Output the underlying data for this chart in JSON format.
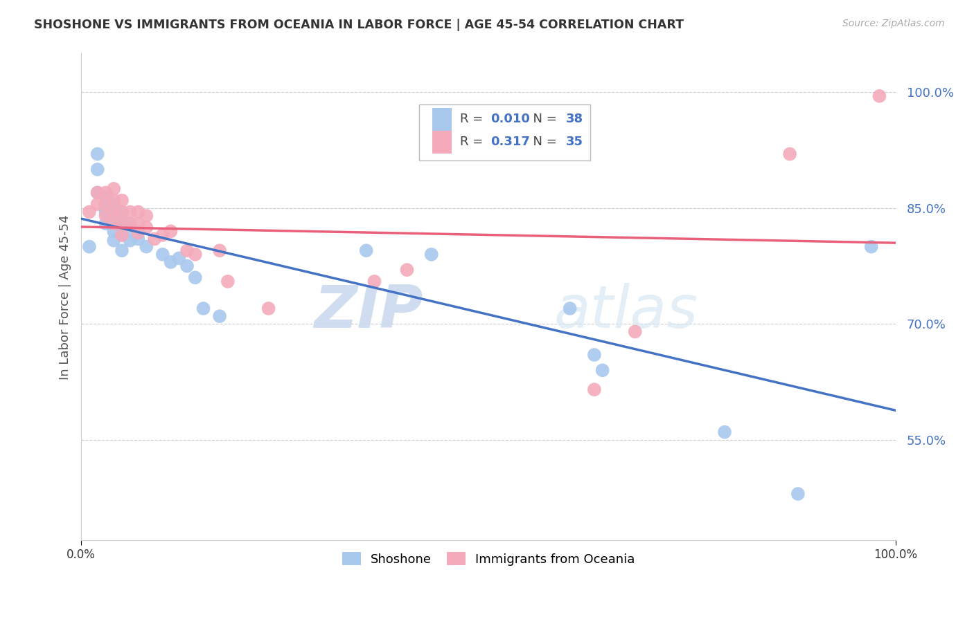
{
  "title": "SHOSHONE VS IMMIGRANTS FROM OCEANIA IN LABOR FORCE | AGE 45-54 CORRELATION CHART",
  "source": "Source: ZipAtlas.com",
  "ylabel": "In Labor Force | Age 45-54",
  "xlim": [
    0.0,
    1.0
  ],
  "ylim": [
    0.42,
    1.05
  ],
  "yticks": [
    0.55,
    0.7,
    0.85,
    1.0
  ],
  "ytick_labels": [
    "55.0%",
    "70.0%",
    "85.0%",
    "100.0%"
  ],
  "xtick_labels": [
    "0.0%",
    "100.0%"
  ],
  "legend_label1": "Shoshone",
  "legend_label2": "Immigrants from Oceania",
  "R1": "0.010",
  "N1": "38",
  "R2": "0.317",
  "N2": "35",
  "color_blue": "#A8C8EE",
  "color_pink": "#F4AABB",
  "line_blue": "#4472C4",
  "line_pink": "#E8607A",
  "watermark_zip": "ZIP",
  "watermark_atlas": "atlas",
  "blue_x": [
    0.01,
    0.02,
    0.02,
    0.02,
    0.03,
    0.03,
    0.03,
    0.03,
    0.04,
    0.04,
    0.04,
    0.04,
    0.04,
    0.05,
    0.05,
    0.05,
    0.05,
    0.05,
    0.06,
    0.06,
    0.06,
    0.07,
    0.08,
    0.1,
    0.11,
    0.12,
    0.13,
    0.14,
    0.15,
    0.17,
    0.35,
    0.43,
    0.6,
    0.63,
    0.64,
    0.79,
    0.88,
    0.97
  ],
  "blue_y": [
    0.8,
    0.92,
    0.9,
    0.87,
    0.865,
    0.855,
    0.845,
    0.83,
    0.855,
    0.845,
    0.835,
    0.82,
    0.808,
    0.845,
    0.835,
    0.825,
    0.815,
    0.795,
    0.83,
    0.82,
    0.808,
    0.81,
    0.8,
    0.79,
    0.78,
    0.785,
    0.775,
    0.76,
    0.72,
    0.71,
    0.795,
    0.79,
    0.72,
    0.66,
    0.64,
    0.56,
    0.48,
    0.8
  ],
  "pink_x": [
    0.01,
    0.02,
    0.02,
    0.03,
    0.03,
    0.03,
    0.04,
    0.04,
    0.04,
    0.04,
    0.05,
    0.05,
    0.05,
    0.05,
    0.06,
    0.06,
    0.07,
    0.07,
    0.07,
    0.08,
    0.08,
    0.09,
    0.1,
    0.11,
    0.13,
    0.14,
    0.17,
    0.18,
    0.23,
    0.36,
    0.4,
    0.63,
    0.68,
    0.87,
    0.98
  ],
  "pink_y": [
    0.845,
    0.87,
    0.855,
    0.87,
    0.855,
    0.84,
    0.875,
    0.86,
    0.845,
    0.83,
    0.86,
    0.845,
    0.83,
    0.815,
    0.845,
    0.83,
    0.845,
    0.83,
    0.818,
    0.84,
    0.825,
    0.81,
    0.815,
    0.82,
    0.795,
    0.79,
    0.795,
    0.755,
    0.72,
    0.755,
    0.77,
    0.615,
    0.69,
    0.92,
    0.995
  ]
}
